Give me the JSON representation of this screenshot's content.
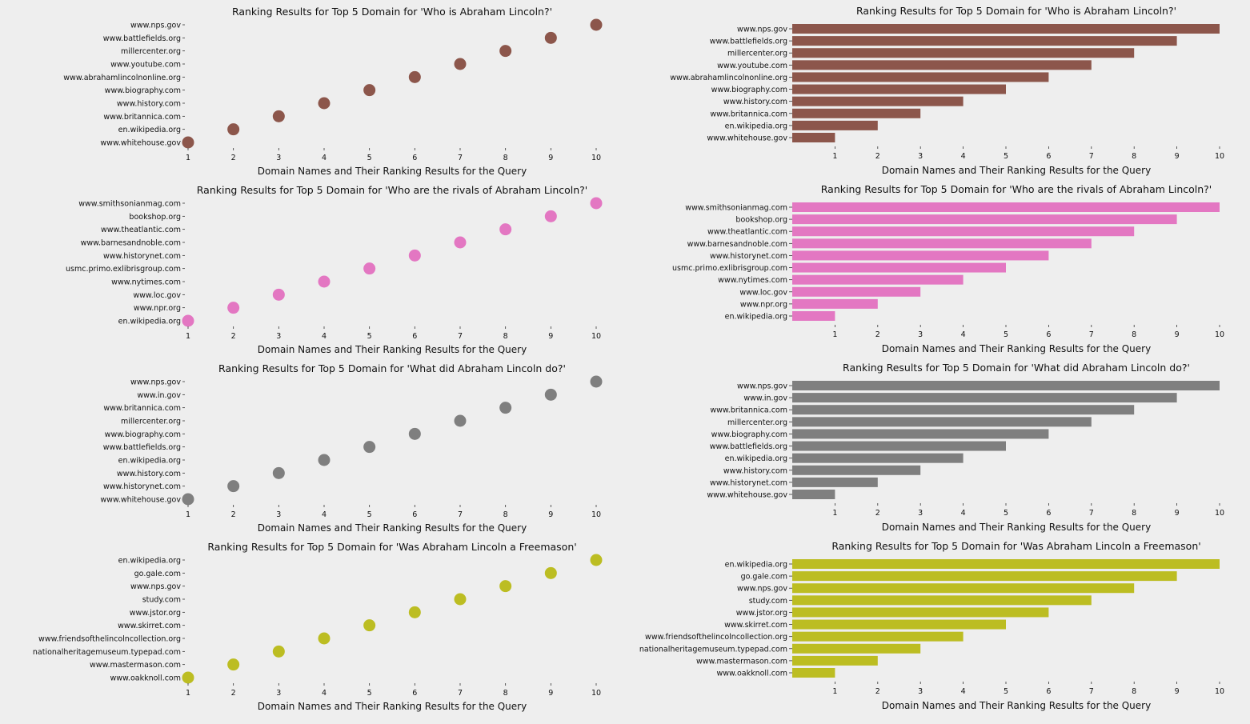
{
  "chart_data": [
    {
      "type": "scatter",
      "title": "Ranking Results for Top 5 Domain for 'Who is Abraham Lincoln?'",
      "xlabel": "Domain Names and Their Ranking Results for the Query",
      "ylabel": "",
      "color": "#8c564b",
      "xlim": [
        1,
        10
      ],
      "grid": false,
      "categories": [
        "www.whitehouse.gov",
        "en.wikipedia.org",
        "www.britannica.com",
        "www.history.com",
        "www.biography.com",
        "www.abrahamlincolnonline.org",
        "www.youtube.com",
        "millercenter.org",
        "www.battlefields.org",
        "www.nps.gov"
      ],
      "values": [
        1,
        2,
        3,
        4,
        5,
        6,
        7,
        8,
        9,
        10
      ]
    },
    {
      "type": "bar",
      "orientation": "horizontal",
      "title": "Ranking Results for Top 5 Domain for 'Who is Abraham Lincoln?'",
      "xlabel": "Domain Names and Their Ranking Results for the Query",
      "ylabel": "",
      "color": "#8c564b",
      "xlim": [
        0,
        10
      ],
      "grid": false,
      "categories": [
        "www.whitehouse.gov",
        "en.wikipedia.org",
        "www.britannica.com",
        "www.history.com",
        "www.biography.com",
        "www.abrahamlincolnonline.org",
        "www.youtube.com",
        "millercenter.org",
        "www.battlefields.org",
        "www.nps.gov"
      ],
      "values": [
        1,
        2,
        3,
        4,
        5,
        6,
        7,
        8,
        9,
        10
      ]
    },
    {
      "type": "scatter",
      "title": "Ranking Results for Top 5 Domain for 'Who are the rivals of Abraham Lincoln?'",
      "xlabel": "Domain Names and Their Ranking Results for the Query",
      "ylabel": "",
      "color": "#e377c2",
      "xlim": [
        1,
        10
      ],
      "grid": false,
      "categories": [
        "en.wikipedia.org",
        "www.npr.org",
        "www.loc.gov",
        "www.nytimes.com",
        "usmc.primo.exlibrisgroup.com",
        "www.historynet.com",
        "www.barnesandnoble.com",
        "www.theatlantic.com",
        "bookshop.org",
        "www.smithsonianmag.com"
      ],
      "values": [
        1,
        2,
        3,
        4,
        5,
        6,
        7,
        8,
        9,
        10
      ]
    },
    {
      "type": "bar",
      "orientation": "horizontal",
      "title": "Ranking Results for Top 5 Domain for 'Who are the rivals of Abraham Lincoln?'",
      "xlabel": "Domain Names and Their Ranking Results for the Query",
      "ylabel": "",
      "color": "#e377c2",
      "xlim": [
        0,
        10
      ],
      "grid": false,
      "categories": [
        "en.wikipedia.org",
        "www.npr.org",
        "www.loc.gov",
        "www.nytimes.com",
        "usmc.primo.exlibrisgroup.com",
        "www.historynet.com",
        "www.barnesandnoble.com",
        "www.theatlantic.com",
        "bookshop.org",
        "www.smithsonianmag.com"
      ],
      "values": [
        1,
        2,
        3,
        4,
        5,
        6,
        7,
        8,
        9,
        10
      ]
    },
    {
      "type": "scatter",
      "title": "Ranking Results for Top 5 Domain for 'What did Abraham Lincoln do?'",
      "xlabel": "Domain Names and Their Ranking Results for the Query",
      "ylabel": "",
      "color": "#7f7f7f",
      "xlim": [
        1,
        10
      ],
      "grid": false,
      "categories": [
        "www.whitehouse.gov",
        "www.historynet.com",
        "www.history.com",
        "en.wikipedia.org",
        "www.battlefields.org",
        "www.biography.com",
        "millercenter.org",
        "www.britannica.com",
        "www.in.gov",
        "www.nps.gov"
      ],
      "values": [
        1,
        2,
        3,
        4,
        5,
        6,
        7,
        8,
        9,
        10
      ]
    },
    {
      "type": "bar",
      "orientation": "horizontal",
      "title": "Ranking Results for Top 5 Domain for 'What did Abraham Lincoln do?'",
      "xlabel": "Domain Names and Their Ranking Results for the Query",
      "ylabel": "",
      "color": "#7f7f7f",
      "xlim": [
        0,
        10
      ],
      "grid": false,
      "categories": [
        "www.whitehouse.gov",
        "www.historynet.com",
        "www.history.com",
        "en.wikipedia.org",
        "www.battlefields.org",
        "www.biography.com",
        "millercenter.org",
        "www.britannica.com",
        "www.in.gov",
        "www.nps.gov"
      ],
      "values": [
        1,
        2,
        3,
        4,
        5,
        6,
        7,
        8,
        9,
        10
      ]
    },
    {
      "type": "scatter",
      "title": "Ranking Results for Top 5 Domain for 'Was Abraham Lincoln a Freemason'",
      "xlabel": "Domain Names and Their Ranking Results for the Query",
      "ylabel": "",
      "color": "#bcbd22",
      "xlim": [
        1,
        10
      ],
      "grid": false,
      "categories": [
        "www.oakknoll.com",
        "www.mastermason.com",
        "nationalheritagemuseum.typepad.com",
        "www.friendsofthelincolncollection.org",
        "www.skirret.com",
        "www.jstor.org",
        "study.com",
        "www.nps.gov",
        "go.gale.com",
        "en.wikipedia.org"
      ],
      "values": [
        1,
        2,
        3,
        4,
        5,
        6,
        7,
        8,
        9,
        10
      ]
    },
    {
      "type": "bar",
      "orientation": "horizontal",
      "title": "Ranking Results for Top 5 Domain for 'Was Abraham Lincoln a Freemason'",
      "xlabel": "Domain Names and Their Ranking Results for the Query",
      "ylabel": "",
      "color": "#bcbd22",
      "xlim": [
        0,
        10
      ],
      "grid": false,
      "categories": [
        "www.oakknoll.com",
        "www.mastermason.com",
        "nationalheritagemuseum.typepad.com",
        "www.friendsofthelincolncollection.org",
        "www.skirret.com",
        "www.jstor.org",
        "study.com",
        "www.nps.gov",
        "go.gale.com",
        "en.wikipedia.org"
      ],
      "values": [
        1,
        2,
        3,
        4,
        5,
        6,
        7,
        8,
        9,
        10
      ]
    }
  ],
  "x_ticks": [
    "1",
    "2",
    "3",
    "4",
    "5",
    "6",
    "7",
    "8",
    "9",
    "10"
  ]
}
